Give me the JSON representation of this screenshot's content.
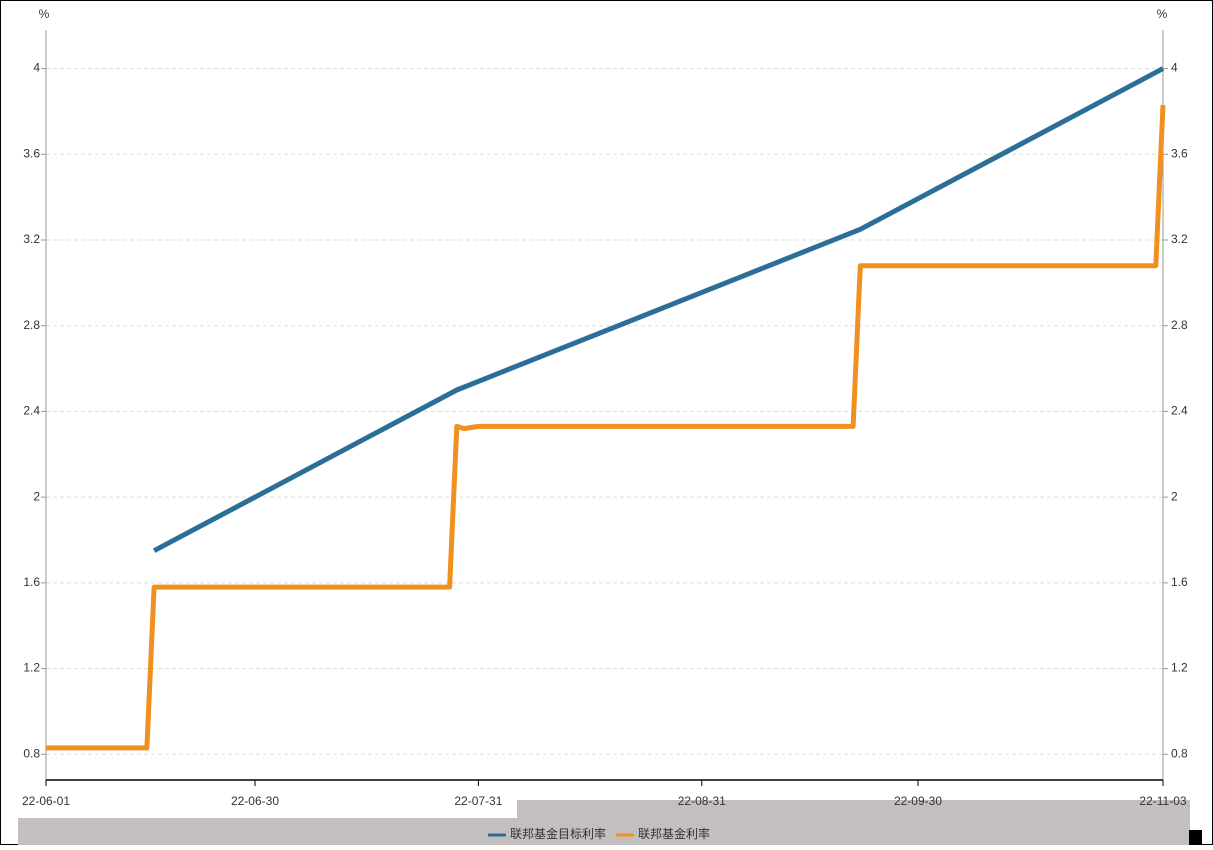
{
  "chart_data": {
    "type": "line",
    "y_unit": "%",
    "y2_unit": "%",
    "xlim": [
      "2022-06-01",
      "2022-11-03"
    ],
    "xticks": [
      {
        "value": "2022-06-01",
        "label": "22-06-01"
      },
      {
        "value": "2022-06-30",
        "label": "22-06-30"
      },
      {
        "value": "2022-07-31",
        "label": "22-07-31"
      },
      {
        "value": "2022-08-31",
        "label": "22-08-31"
      },
      {
        "value": "2022-09-30",
        "label": "22-09-30"
      },
      {
        "value": "2022-11-03",
        "label": "22-11-03"
      }
    ],
    "ylim": [
      0.68,
      4.18
    ],
    "yticks": [
      0.8,
      1.2,
      1.6,
      2,
      2.4,
      2.8,
      3.2,
      3.6,
      4
    ],
    "y2lim": [
      0.68,
      4.18
    ],
    "y2ticks": [
      0.8,
      1.2,
      1.6,
      2,
      2.4,
      2.8,
      3.2,
      3.6,
      4
    ],
    "grid": true,
    "legend": "bottom",
    "series": [
      {
        "name": "联邦基金目标利率",
        "color": "#2b6f98",
        "x": [
          "2022-06-16",
          "2022-07-28",
          "2022-09-22",
          "2022-11-03"
        ],
        "values": [
          1.75,
          2.5,
          3.25,
          4.0
        ]
      },
      {
        "name": "联邦基金利率",
        "color": "#f0901f",
        "x": [
          "2022-06-01",
          "2022-06-15",
          "2022-06-16",
          "2022-07-27",
          "2022-07-28",
          "2022-07-29",
          "2022-07-31",
          "2022-09-21",
          "2022-09-22",
          "2022-11-02",
          "2022-11-03"
        ],
        "values": [
          0.83,
          0.83,
          1.58,
          1.58,
          2.33,
          2.32,
          2.33,
          2.33,
          3.08,
          3.08,
          3.83
        ]
      }
    ]
  }
}
